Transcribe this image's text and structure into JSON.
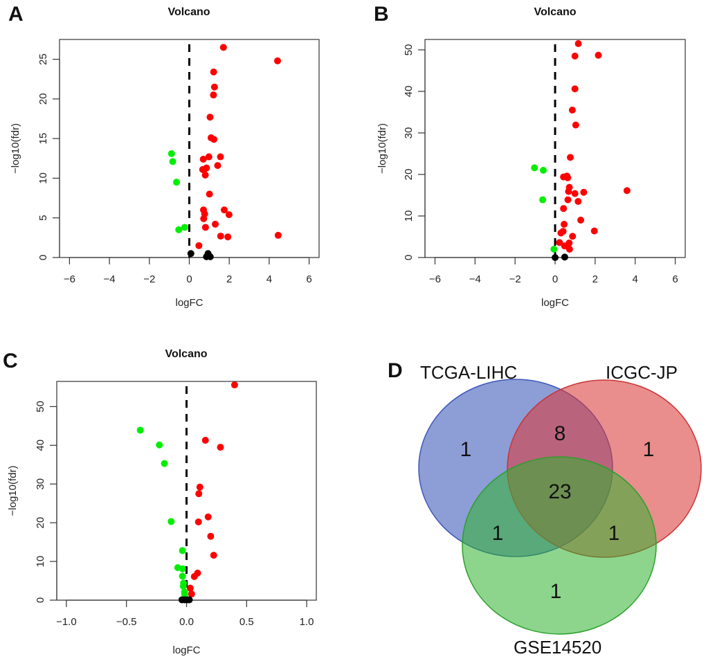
{
  "panel_labels": [
    "A",
    "B",
    "C",
    "D"
  ],
  "colors": {
    "up": "#ff0000",
    "down": "#00ee00",
    "ns": "#000000",
    "venn_blue": "#3a57b8",
    "venn_red": "#d93a3a",
    "venn_green": "#2fb32f"
  },
  "chart_data": [
    {
      "id": "A",
      "type": "scatter",
      "title": "Volcano",
      "xlabel": "logFC",
      "ylabel": "−log10(fdr)",
      "xlim": [
        -6.5,
        6.5
      ],
      "ylim": [
        0,
        27.5
      ],
      "xticks": [
        -6,
        -4,
        -2,
        0,
        2,
        4,
        6
      ],
      "xtick_labels": [
        "−6",
        "−4",
        "−2",
        "0",
        "2",
        "4",
        "6"
      ],
      "yticks": [
        0,
        5,
        10,
        15,
        20,
        25
      ],
      "ytick_labels": [
        "0",
        "5",
        "10",
        "15",
        "20",
        "25"
      ],
      "threshold_line_x": 0,
      "series": [
        {
          "name": "up",
          "points": [
            [
              1.71,
              26.5
            ],
            [
              4.42,
              24.8
            ],
            [
              1.22,
              23.4
            ],
            [
              1.26,
              21.5
            ],
            [
              1.21,
              20.5
            ],
            [
              1.04,
              17.7
            ],
            [
              1.09,
              15.1
            ],
            [
              1.23,
              14.9
            ],
            [
              0.98,
              12.7
            ],
            [
              1.56,
              12.7
            ],
            [
              0.7,
              12.4
            ],
            [
              1.42,
              11.6
            ],
            [
              0.67,
              11.1
            ],
            [
              0.74,
              11.1
            ],
            [
              0.86,
              11.3
            ],
            [
              0.8,
              10.4
            ],
            [
              1.01,
              8.0
            ],
            [
              0.71,
              6.0
            ],
            [
              1.75,
              6.0
            ],
            [
              0.77,
              5.5
            ],
            [
              1.99,
              5.4
            ],
            [
              0.72,
              4.9
            ],
            [
              1.3,
              4.2
            ],
            [
              0.81,
              3.8
            ],
            [
              4.45,
              2.8
            ],
            [
              1.57,
              2.7
            ],
            [
              1.93,
              2.6
            ],
            [
              0.48,
              1.5
            ]
          ]
        },
        {
          "name": "down",
          "points": [
            [
              -0.89,
              13.1
            ],
            [
              -0.83,
              12.1
            ],
            [
              -0.64,
              9.5
            ],
            [
              -0.23,
              3.8
            ],
            [
              -0.53,
              3.5
            ]
          ]
        },
        {
          "name": "ns",
          "points": [
            [
              0.08,
              0.5
            ],
            [
              0.94,
              0.5
            ],
            [
              0.86,
              0.1
            ],
            [
              1.05,
              0.1
            ]
          ]
        }
      ]
    },
    {
      "id": "B",
      "type": "scatter",
      "title": "Volcano",
      "xlabel": "logFC",
      "ylabel": "−log10(fdr)",
      "xlim": [
        -6.5,
        6.5
      ],
      "ylim": [
        0,
        52.5
      ],
      "xticks": [
        -6,
        -4,
        -2,
        0,
        2,
        4,
        6
      ],
      "xtick_labels": [
        "−6",
        "−4",
        "−2",
        "0",
        "2",
        "4",
        "6"
      ],
      "yticks": [
        0,
        10,
        20,
        30,
        40,
        50
      ],
      "ytick_labels": [
        "0",
        "10",
        "20",
        "30",
        "40",
        "50"
      ],
      "threshold_line_x": 0,
      "series": [
        {
          "name": "up",
          "points": [
            [
              1.16,
              51.5
            ],
            [
              0.99,
              48.5
            ],
            [
              2.16,
              48.7
            ],
            [
              0.99,
              40.6
            ],
            [
              0.86,
              35.5
            ],
            [
              1.03,
              31.9
            ],
            [
              0.76,
              24.1
            ],
            [
              0.42,
              19.4
            ],
            [
              0.59,
              19.6
            ],
            [
              0.63,
              19.2
            ],
            [
              0.71,
              16.9
            ],
            [
              0.67,
              15.9
            ],
            [
              0.99,
              15.4
            ],
            [
              1.43,
              15.7
            ],
            [
              3.59,
              16.1
            ],
            [
              0.64,
              13.9
            ],
            [
              1.15,
              13.5
            ],
            [
              0.42,
              11.8
            ],
            [
              1.28,
              9.0
            ],
            [
              0.45,
              8.0
            ],
            [
              1.96,
              6.4
            ],
            [
              0.4,
              6.3
            ],
            [
              0.29,
              5.9
            ],
            [
              0.87,
              5.1
            ],
            [
              0.22,
              3.6
            ],
            [
              0.7,
              3.5
            ],
            [
              0.47,
              2.8
            ],
            [
              0.72,
              2.0
            ]
          ]
        },
        {
          "name": "down",
          "points": [
            [
              -1.03,
              21.6
            ],
            [
              -0.59,
              21.0
            ],
            [
              -0.62,
              13.9
            ],
            [
              -0.06,
              2.0
            ]
          ]
        },
        {
          "name": "ns",
          "points": [
            [
              0.0,
              0.0
            ],
            [
              0.48,
              0.1
            ]
          ]
        }
      ]
    },
    {
      "id": "C",
      "type": "scatter",
      "title": "Volcano",
      "xlabel": "logFC",
      "ylabel": "−log10(fdr)",
      "xlim": [
        -1.08,
        1.08
      ],
      "ylim": [
        0,
        56.5
      ],
      "xticks": [
        -1.0,
        -0.5,
        0.0,
        0.5,
        1.0
      ],
      "xtick_labels": [
        "−1.0",
        "−0.5",
        "0.0",
        "0.5",
        "1.0"
      ],
      "yticks": [
        0,
        10,
        20,
        30,
        40,
        50
      ],
      "ytick_labels": [
        "0",
        "10",
        "20",
        "30",
        "40",
        "50"
      ],
      "threshold_line_x": 0,
      "series": [
        {
          "name": "up",
          "points": [
            [
              0.4,
              55.6
            ],
            [
              0.157,
              41.3
            ],
            [
              0.282,
              39.5
            ],
            [
              0.111,
              29.2
            ],
            [
              0.102,
              27.5
            ],
            [
              0.18,
              21.5
            ],
            [
              0.099,
              20.2
            ],
            [
              0.201,
              16.5
            ],
            [
              0.226,
              11.6
            ],
            [
              0.092,
              7.0
            ],
            [
              0.065,
              6.1
            ],
            [
              0.031,
              3.1
            ],
            [
              0.042,
              1.6
            ]
          ]
        },
        {
          "name": "down",
          "points": [
            [
              -0.385,
              43.9
            ],
            [
              -0.226,
              40.1
            ],
            [
              -0.184,
              35.3
            ],
            [
              -0.128,
              20.3
            ],
            [
              -0.034,
              12.8
            ],
            [
              -0.073,
              8.4
            ],
            [
              -0.033,
              8.1
            ],
            [
              -0.034,
              6.2
            ],
            [
              -0.025,
              4.4
            ],
            [
              -0.027,
              3.6
            ],
            [
              -0.017,
              2.1
            ],
            [
              -0.015,
              1.5
            ]
          ]
        },
        {
          "name": "ns",
          "points": [
            [
              -0.038,
              0.1
            ],
            [
              -0.015,
              0.1
            ],
            [
              0.008,
              0.1
            ],
            [
              0.023,
              0.1
            ]
          ]
        }
      ]
    },
    {
      "id": "D",
      "type": "venn",
      "sets": [
        "TCGA-LIHC",
        "ICGC-JP",
        "GSE14520"
      ],
      "regions": [
        {
          "sets": [
            "TCGA-LIHC"
          ],
          "count": "1"
        },
        {
          "sets": [
            "ICGC-JP"
          ],
          "count": "1"
        },
        {
          "sets": [
            "GSE14520"
          ],
          "count": "1"
        },
        {
          "sets": [
            "TCGA-LIHC",
            "ICGC-JP"
          ],
          "count": "8"
        },
        {
          "sets": [
            "TCGA-LIHC",
            "GSE14520"
          ],
          "count": "1"
        },
        {
          "sets": [
            "ICGC-JP",
            "GSE14520"
          ],
          "count": "1"
        },
        {
          "sets": [
            "TCGA-LIHC",
            "ICGC-JP",
            "GSE14520"
          ],
          "count": "23"
        }
      ]
    }
  ]
}
